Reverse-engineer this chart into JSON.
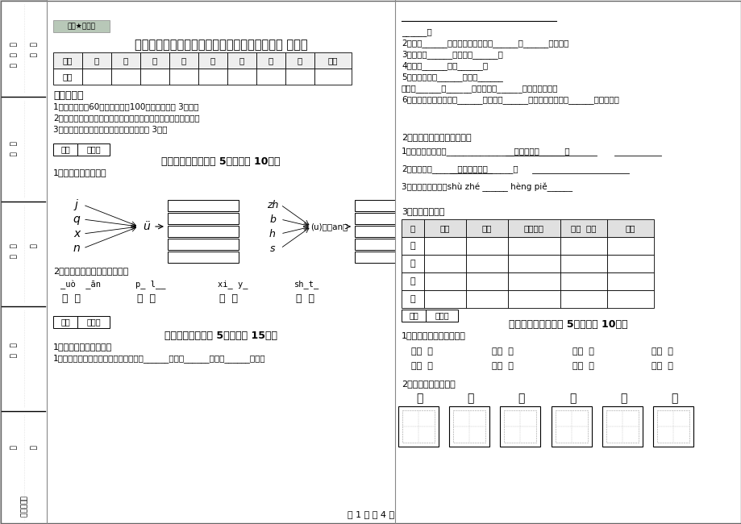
{
  "title": "济南市实验小学一年级语文上学期每周一练试卷 附答案",
  "bg_color": "#ffffff",
  "stamp_text": "绝密★启用前",
  "stamp_bg": "#b8b8b8",
  "table_headers": [
    "题号",
    "一",
    "二",
    "三",
    "四",
    "五",
    "六",
    "七",
    "八",
    "总分"
  ],
  "table_row": [
    "得分"
  ],
  "notice_title": "考试须知：",
  "notices": [
    "1、考试时间：60分钟，满分为100分（含卷面分 3分）。",
    "2、请首先按要求在试卷的指定位置填写您的姓名、班级、学号。",
    "3、不要在试卷上乱写乱画，卷面不整洁才 3分。"
  ],
  "section1_title": "一、拼音部分（每题 5分，共计 10分）",
  "section1_sub1": "1、我会拼，我会写。",
  "pinyin_left_letters": [
    "j",
    "q",
    "x",
    "n"
  ],
  "pinyin_mid": "ü",
  "pinyin_right_letters": [
    "zh",
    "b",
    "h",
    "s"
  ],
  "pinyin_right_mid": "(u)－（an）",
  "section1_sub2": "2、读一读，把音节填写完整。",
  "pinyin_blanks": [
    "_uò  _ān",
    "p_ l__",
    "xi_ y_",
    "sh_t_"
  ],
  "pinyin_words": [
    "做  饭",
    "飘  落",
    "鲜  艳",
    "身  体"
  ],
  "section2_title": "二、填空题（每题 5分，共计 15分）",
  "section2_sub1": "1、你会填吗？试一试。",
  "section2_text1": "1、宋代的盛疵七岁时写了一首诗：只有______，更无______。举头______，回首",
  "right_col_lines": [
    "______。",
    "2、江上______，但爱鲈鱼美。君看______，______风波里。",
    "3、满地的______比天上的______。",
    "4、众人______，黄______。",
    "5、夏天来了，______风大，______雨多。______和______都成熟了。______花和花都开了。",
    "6、姑姑送我一只小鸟，______的羽毛，______的嘴巴，两只眼睛______的，可爱。"
  ],
  "section2_sub2": "2、根据笔画笔顺知识填空。",
  "stroke_lines": [
    "1、「马」的笔顺是________________，第二笔是______。",
    "2、「耳」共______笔，第二笔是______。",
    "3、看拼音写笔画：shù zhé ______ hèng piě______"
  ],
  "lookup_title": "3、查字典练习。",
  "lookup_headers": [
    "字",
    "音节",
    "部首",
    "再查几画",
    "共（  ）面",
    "组词"
  ],
  "lookup_chars": [
    "歇",
    "请",
    "急",
    "第"
  ],
  "section3_title": "三、识字写字（每题 5分，共计 10分）",
  "section3_sub1": "1、我会给下面的字组词。",
  "char_groups1": [
    "入（  ）",
    "小（  ）",
    "雨（  ）",
    "毛（  ）"
  ],
  "char_groups2": [
    "人（  ）",
    "少（  ）",
    "两（  ）",
    "手（  ）"
  ],
  "section3_sub2": "2、我会把字写漂亮。",
  "write_chars": [
    "里",
    "果",
    "用",
    "半",
    "把",
    "巴"
  ],
  "footer": "第 1 页 共 4 页",
  "side_v_labels": [
    "印",
    "号",
    "学",
    "班",
    "级",
    "名",
    "姓",
    "内",
    "学",
    "校",
    "班",
    "级",
    "乡（街道）"
  ]
}
